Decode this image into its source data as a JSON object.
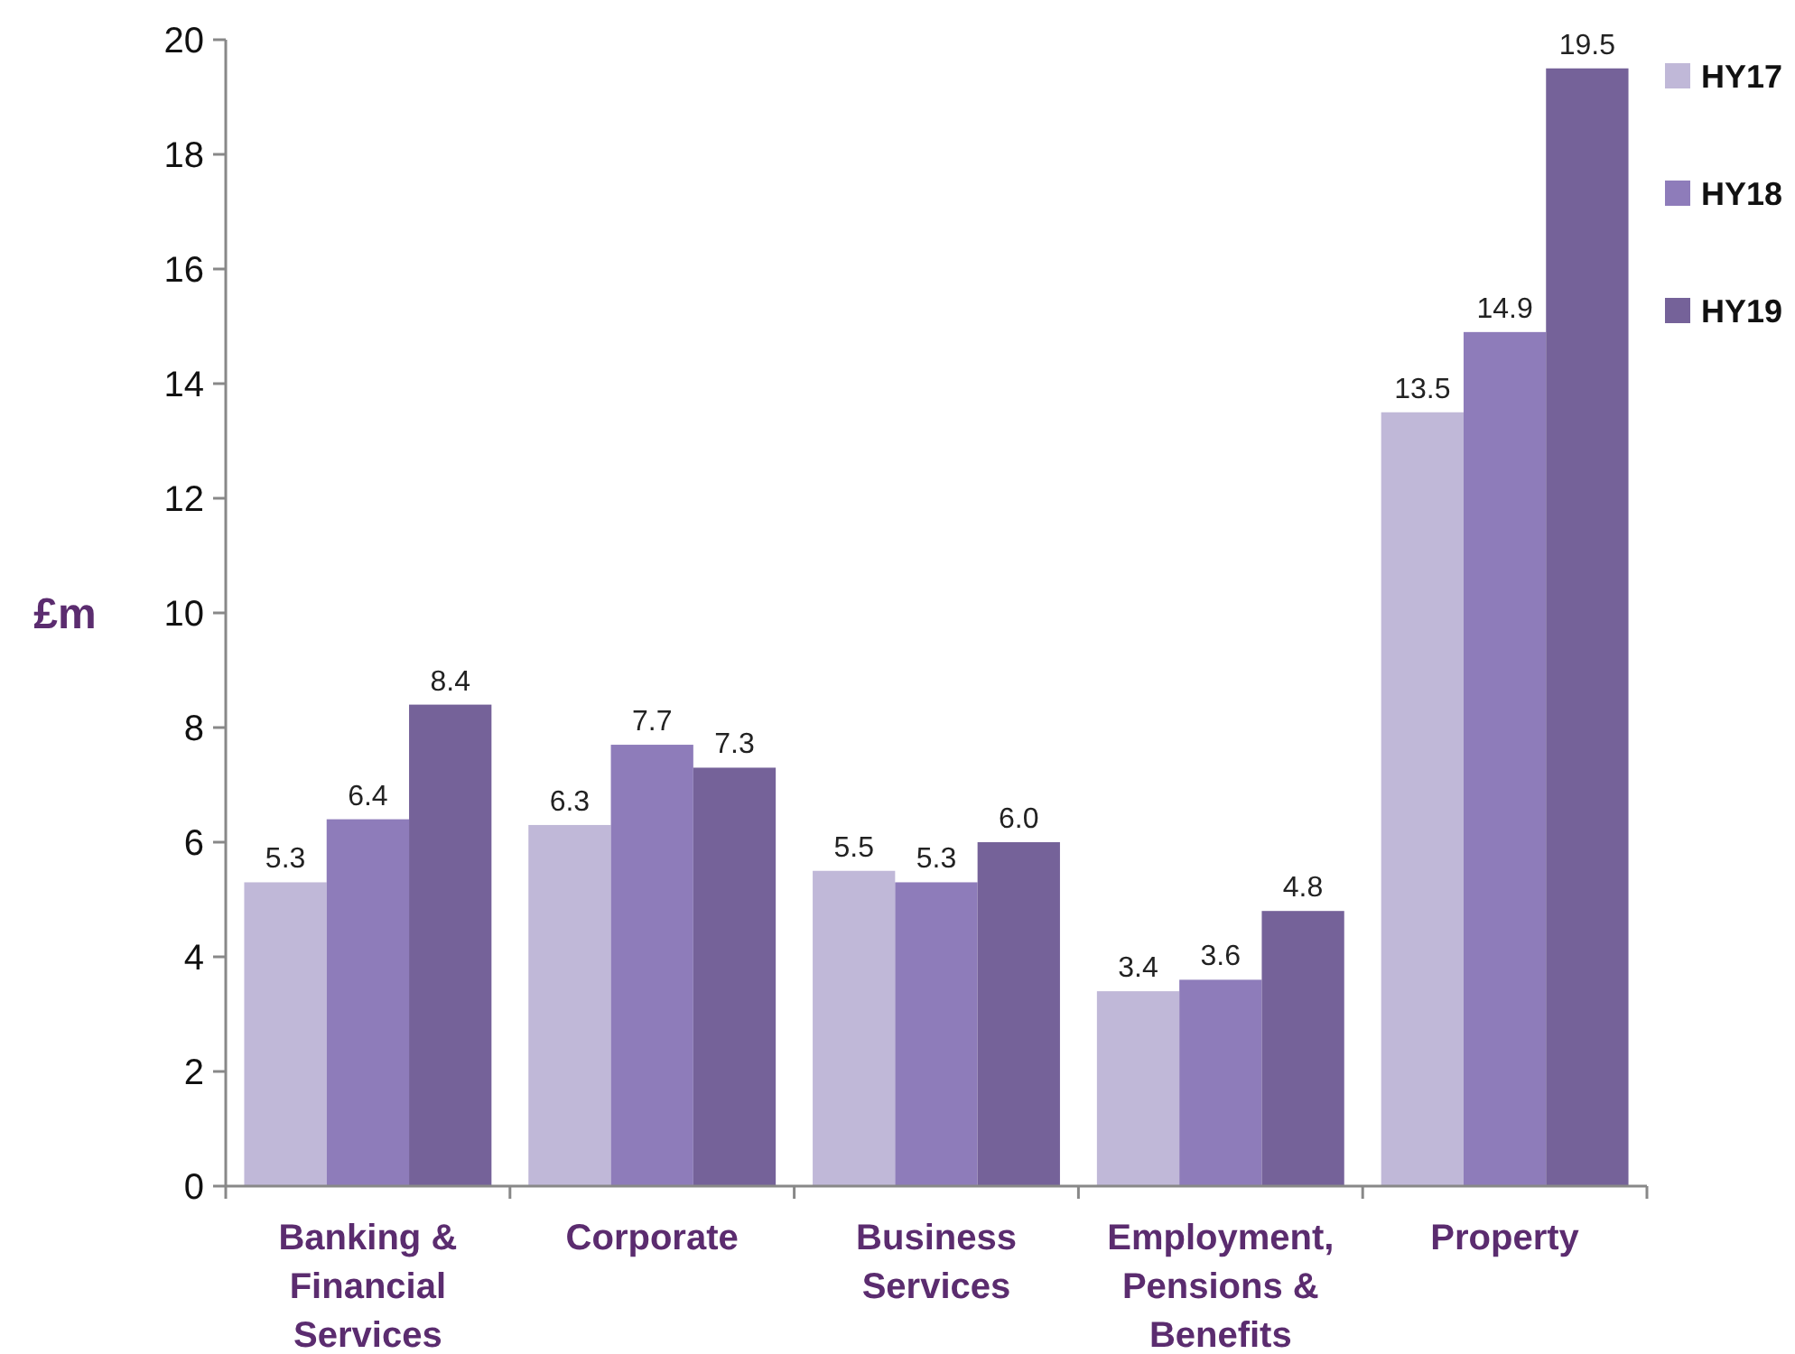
{
  "chart_data": {
    "type": "bar",
    "ylabel": "£m",
    "categories": [
      "Banking & Financial Services",
      "Corporate",
      "Business Services",
      "Employment, Pensions & Benefits",
      "Property"
    ],
    "series": [
      {
        "name": "HY17",
        "color": "#c0b8d8",
        "values": [
          5.3,
          6.3,
          5.5,
          3.4,
          13.5
        ],
        "value_labels": [
          "5.3",
          "6.3",
          "5.5",
          "3.4",
          "13.5"
        ]
      },
      {
        "name": "HY18",
        "color": "#8e7cba",
        "values": [
          6.4,
          7.7,
          5.3,
          3.6,
          14.9
        ],
        "value_labels": [
          "6.4",
          "7.7",
          "5.3",
          "3.6",
          "14.9"
        ]
      },
      {
        "name": "HY19",
        "color": "#756299",
        "values": [
          8.4,
          7.3,
          6.0,
          4.8,
          19.5
        ],
        "value_labels": [
          "8.4",
          "7.3",
          "6.0",
          "4.8",
          "19.5"
        ]
      }
    ],
    "ylim": [
      0,
      20
    ],
    "yticks": [
      0,
      2,
      4,
      6,
      8,
      10,
      12,
      14,
      16,
      18,
      20
    ],
    "grid": false,
    "legend": "top right"
  }
}
